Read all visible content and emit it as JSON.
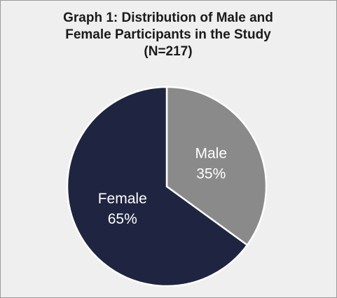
{
  "chart_data": {
    "type": "pie",
    "title": [
      "Graph 1: Distribution of Male and",
      "Female Participants in the Study",
      "(N=217)"
    ],
    "categories": [
      "Male",
      "Female"
    ],
    "values": [
      35,
      65
    ],
    "value_labels": [
      "35%",
      "65%"
    ],
    "colors": [
      "#8a8a8a",
      "#1f2540"
    ]
  }
}
